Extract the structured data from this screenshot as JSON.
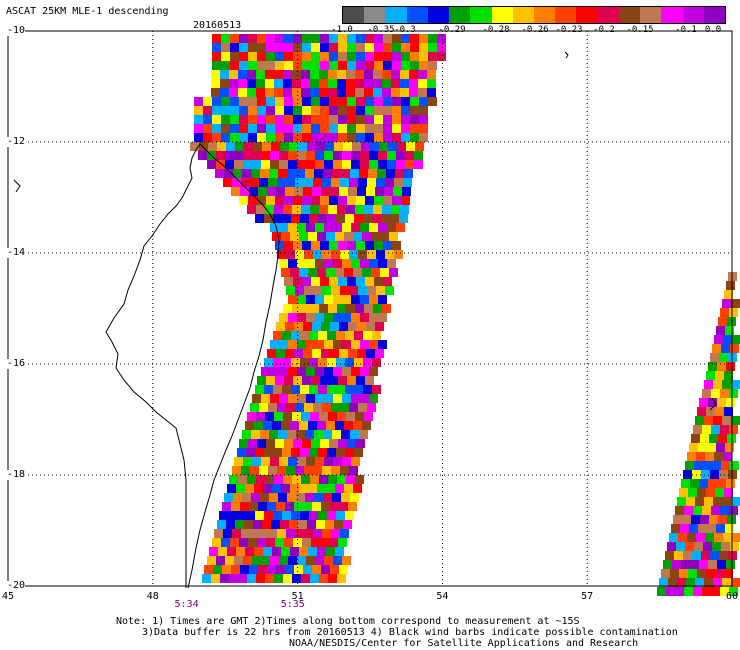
{
  "header": {
    "title": "ASCAT 25KM MLE-1 descending",
    "date": "20160513"
  },
  "colorbar": {
    "colors": [
      "#4d4d4d",
      "#8a8a8a",
      "#00b0ff",
      "#0050ff",
      "#0000e0",
      "#00a000",
      "#00e000",
      "#ffff00",
      "#ffc000",
      "#ff8000",
      "#ff4000",
      "#ff0000",
      "#e00050",
      "#8b4513",
      "#c07850",
      "#ff00ff",
      "#c000e0",
      "#9000c0"
    ],
    "ticks": [
      "-1.0",
      "-0.35",
      "-0.3",
      "-0.29",
      "-0.28",
      "-0.26",
      "-0.23",
      "-0.2",
      "-0.15",
      "-0.1",
      "0.0"
    ]
  },
  "axes": {
    "lat_labels": [
      "-10",
      "-12",
      "-14",
      "-16",
      "-18",
      "-20"
    ],
    "lon_labels": [
      "45",
      "48",
      "51",
      "54",
      "57",
      "60"
    ],
    "lat_range": [
      -20,
      -10
    ],
    "lon_range": [
      45,
      60
    ],
    "gridline_style": "dotted"
  },
  "times": {
    "items": [
      {
        "label": "5:34",
        "lon": 48.7
      },
      {
        "label": "5:35",
        "lon": 50.9
      }
    ],
    "color": "#800080"
  },
  "notes": {
    "line1": "Note: 1) Times are GMT 2)Times along bottom correspond to measurement at ~15S",
    "line2": "3)Data buffer is 22 hrs from 20160513 4) Black wind barbs indicate possible contamination",
    "line3": "NOAA/NESDIS/Center for Satellite Applications and Research"
  }
}
